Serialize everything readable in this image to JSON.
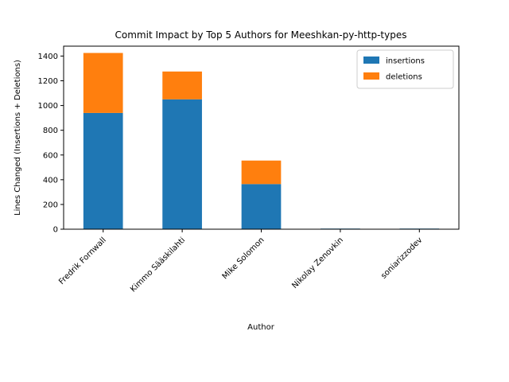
{
  "chart_data": {
    "type": "bar",
    "stacked": true,
    "title": "Commit Impact by Top 5 Authors for Meeshkan-py-http-types",
    "xlabel": "Author",
    "ylabel": "Lines Changed (Insertions + Deletions)",
    "categories": [
      "Fredrik Fornwall",
      "Kimmo Sääskilahti",
      "Mike Solomon",
      "Nikolay Zenovkin",
      "soniarizzodev"
    ],
    "series": [
      {
        "name": "insertions",
        "color": "#1f77b4",
        "values": [
          940,
          1050,
          365,
          5,
          5
        ]
      },
      {
        "name": "deletions",
        "color": "#ff7f0e",
        "values": [
          485,
          225,
          190,
          0,
          0
        ]
      }
    ],
    "ylim": [
      0,
      1480
    ],
    "yticks": [
      0,
      200,
      400,
      600,
      800,
      1000,
      1200,
      1400
    ],
    "grid": false,
    "legend_position": "top-right"
  }
}
